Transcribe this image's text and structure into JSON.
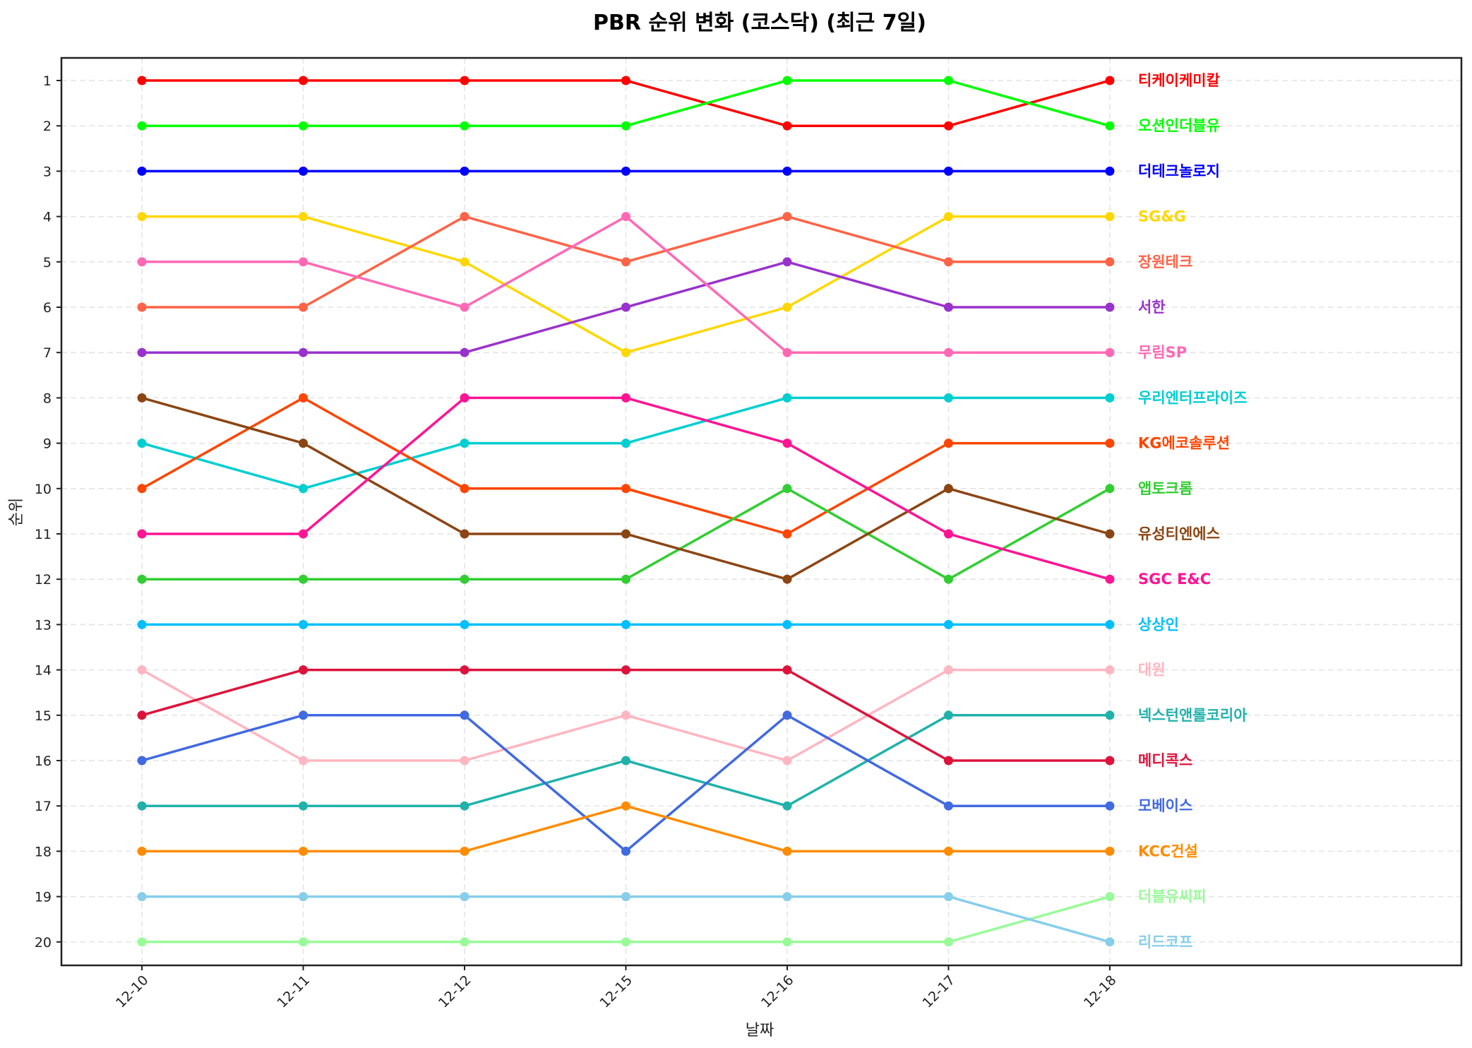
{
  "chart_data": {
    "type": "line",
    "title": "PBR 순위 변화 (코스닥) (최근 7일)",
    "xlabel": "날짜",
    "ylabel": "순위",
    "categories": [
      "12-10",
      "12-11",
      "12-12",
      "12-15",
      "12-16",
      "12-17",
      "12-18"
    ],
    "yticks": [
      1,
      2,
      3,
      4,
      5,
      6,
      7,
      8,
      9,
      10,
      11,
      12,
      13,
      14,
      15,
      16,
      17,
      18,
      19,
      20
    ],
    "ylim": [
      20.7,
      0.3
    ],
    "y_inverted": true,
    "grid": true,
    "legend_position": "inline-right",
    "series": [
      {
        "name": "티케이케미칼",
        "color": "#FF0000",
        "values": [
          1,
          1,
          1,
          1,
          2,
          2,
          1
        ]
      },
      {
        "name": "오션인더블유",
        "color": "#00FF00",
        "values": [
          2,
          2,
          2,
          2,
          1,
          1,
          2
        ]
      },
      {
        "name": "더테크놀로지",
        "color": "#0000FF",
        "values": [
          3,
          3,
          3,
          3,
          3,
          3,
          3
        ]
      },
      {
        "name": "SG&G",
        "color": "#FFD700",
        "values": [
          4,
          4,
          5,
          7,
          6,
          4,
          4
        ]
      },
      {
        "name": "장원테크",
        "color": "#FF6347",
        "values": [
          6,
          6,
          4,
          5,
          4,
          5,
          5
        ]
      },
      {
        "name": "서한",
        "color": "#9932CC",
        "values": [
          7,
          7,
          7,
          6,
          5,
          6,
          6
        ]
      },
      {
        "name": "무림SP",
        "color": "#FF69B4",
        "values": [
          5,
          5,
          6,
          4,
          7,
          7,
          7
        ]
      },
      {
        "name": "우리엔터프라이즈",
        "color": "#00CED1",
        "values": [
          9,
          10,
          9,
          9,
          8,
          8,
          8
        ]
      },
      {
        "name": "KG에코솔루션",
        "color": "#FF4500",
        "values": [
          10,
          8,
          10,
          10,
          11,
          9,
          9
        ]
      },
      {
        "name": "앱토크롬",
        "color": "#32CD32",
        "values": [
          12,
          12,
          12,
          12,
          10,
          12,
          10
        ]
      },
      {
        "name": "유성티엔에스",
        "color": "#8B4513",
        "values": [
          8,
          9,
          11,
          11,
          12,
          10,
          11
        ]
      },
      {
        "name": "SGC E&C",
        "color": "#FF1493",
        "values": [
          11,
          11,
          8,
          8,
          9,
          11,
          12
        ]
      },
      {
        "name": "상상인",
        "color": "#00BFFF",
        "values": [
          13,
          13,
          13,
          13,
          13,
          13,
          13
        ]
      },
      {
        "name": "대원",
        "color": "#FFB6C1",
        "values": [
          14,
          16,
          16,
          15,
          16,
          14,
          14
        ]
      },
      {
        "name": "넥스턴앤롤코리아",
        "color": "#20B2AA",
        "values": [
          17,
          17,
          17,
          16,
          17,
          15,
          15
        ]
      },
      {
        "name": "메디콕스",
        "color": "#DC143C",
        "values": [
          15,
          14,
          14,
          14,
          14,
          16,
          16
        ]
      },
      {
        "name": "모베이스",
        "color": "#4169E1",
        "values": [
          16,
          15,
          15,
          18,
          15,
          17,
          17
        ]
      },
      {
        "name": "KCC건설",
        "color": "#FF8C00",
        "values": [
          18,
          18,
          18,
          17,
          18,
          18,
          18
        ]
      },
      {
        "name": "더블유씨피",
        "color": "#98FB98",
        "values": [
          20,
          20,
          20,
          20,
          20,
          20,
          19
        ]
      },
      {
        "name": "리드코프",
        "color": "#87CEEB",
        "values": [
          19,
          19,
          19,
          19,
          19,
          19,
          20
        ]
      }
    ]
  }
}
